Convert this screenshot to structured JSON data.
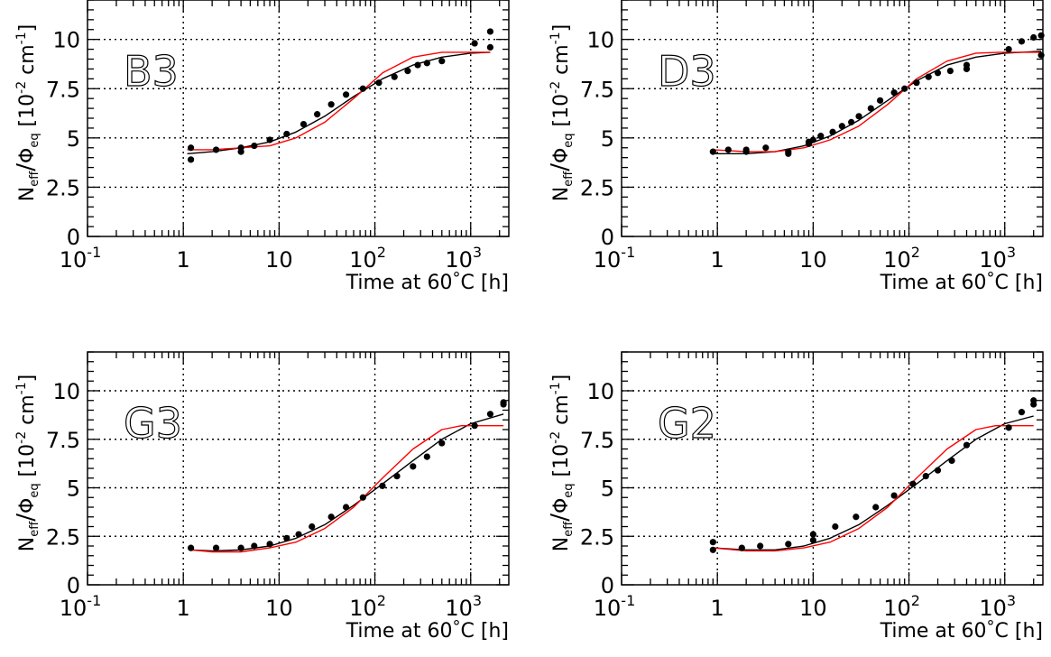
{
  "figure": {
    "xlabel_text": "Time at 60",
    "xlabel_degree": "°",
    "xlabel_unit": "C [h]",
    "ylabel": {
      "n": "N",
      "n_sub": "eff",
      "slash": "/",
      "phi": "Φ",
      "phi_sub": "eq",
      "unit_open": "[10",
      "unit_exp": "-2",
      "unit_cm": " cm",
      "unit_exp2": "-1",
      "unit_close": "]"
    },
    "xtick_labels": [
      {
        "base": "10",
        "exp": "-1"
      },
      {
        "base": "1",
        "exp": ""
      },
      {
        "base": "10",
        "exp": ""
      },
      {
        "base": "10",
        "exp": "2"
      },
      {
        "base": "10",
        "exp": "3"
      }
    ],
    "ytick_labels": [
      "0",
      "2.5",
      "5",
      "7.5",
      "10"
    ],
    "colors": {
      "data": "#000000",
      "fit_black": "#000000",
      "fit_red": "#ff0000",
      "grid": "#000000"
    }
  },
  "chart_data": [
    {
      "type": "scatter",
      "panel_label": "B3",
      "xscale": "log",
      "xlim": [
        0.1,
        2500
      ],
      "ylim": [
        0,
        12
      ],
      "grid": true,
      "series": [
        {
          "kind": "points",
          "x": [
            1.2,
            1.2,
            2.2,
            4,
            4,
            5.5,
            8,
            12,
            18,
            25,
            35,
            50,
            75,
            110,
            160,
            220,
            280,
            350,
            500,
            1100,
            1600,
            1600
          ],
          "y": [
            4.5,
            3.9,
            4.4,
            4.5,
            4.3,
            4.6,
            4.9,
            5.2,
            5.7,
            6.2,
            6.7,
            7.2,
            7.5,
            7.8,
            8.1,
            8.4,
            8.7,
            8.8,
            8.9,
            9.8,
            10.4,
            9.6
          ]
        },
        {
          "kind": "line",
          "color": "black",
          "x": [
            1.1,
            2,
            4,
            8,
            15,
            30,
            60,
            120,
            250,
            500,
            1000,
            1600
          ],
          "y": [
            4.2,
            4.3,
            4.5,
            4.8,
            5.3,
            6.1,
            7.1,
            8.0,
            8.7,
            9.1,
            9.3,
            9.35
          ]
        },
        {
          "kind": "line",
          "color": "red",
          "x": [
            1.1,
            2,
            4,
            8,
            15,
            30,
            60,
            120,
            250,
            500,
            800,
            1600
          ],
          "y": [
            4.4,
            4.4,
            4.5,
            4.6,
            5.0,
            5.8,
            7.0,
            8.3,
            9.1,
            9.35,
            9.35,
            9.35
          ]
        }
      ]
    },
    {
      "type": "scatter",
      "panel_label": "D3",
      "xscale": "log",
      "xlim": [
        0.1,
        2500
      ],
      "ylim": [
        0,
        12
      ],
      "grid": true,
      "series": [
        {
          "kind": "points",
          "x": [
            0.9,
            1.3,
            2,
            2,
            3.2,
            5.5,
            5.5,
            9,
            9,
            10,
            12,
            16,
            20,
            25,
            30,
            40,
            50,
            70,
            90,
            120,
            160,
            200,
            270,
            400,
            400,
            1100,
            1500,
            2000,
            2400,
            2400
          ],
          "y": [
            4.3,
            4.4,
            4.3,
            4.4,
            4.5,
            4.3,
            4.2,
            4.7,
            4.8,
            4.9,
            5.1,
            5.3,
            5.6,
            5.8,
            6.1,
            6.5,
            6.9,
            7.3,
            7.5,
            7.8,
            8.1,
            8.3,
            8.4,
            8.7,
            8.5,
            9.5,
            9.9,
            10.1,
            10.2,
            9.2
          ]
        },
        {
          "kind": "line",
          "color": "black",
          "x": [
            0.9,
            2,
            4,
            8,
            15,
            30,
            60,
            120,
            250,
            500,
            1000,
            2400
          ],
          "y": [
            4.2,
            4.2,
            4.3,
            4.6,
            5.1,
            5.9,
            6.9,
            7.9,
            8.7,
            9.1,
            9.3,
            9.4
          ]
        },
        {
          "kind": "line",
          "color": "red",
          "x": [
            0.9,
            2,
            4,
            8,
            15,
            30,
            60,
            120,
            250,
            500,
            900,
            2400
          ],
          "y": [
            4.4,
            4.3,
            4.3,
            4.5,
            4.9,
            5.6,
            6.7,
            8.0,
            8.9,
            9.3,
            9.35,
            9.35
          ]
        }
      ]
    },
    {
      "type": "scatter",
      "panel_label": "G3",
      "xscale": "log",
      "xlim": [
        0.1,
        2500
      ],
      "ylim": [
        0,
        12
      ],
      "grid": true,
      "series": [
        {
          "kind": "points",
          "x": [
            1.2,
            2.2,
            4,
            5.5,
            8,
            12,
            16,
            22,
            35,
            50,
            75,
            120,
            170,
            250,
            350,
            500,
            1100,
            1600,
            2200,
            2200
          ],
          "y": [
            1.9,
            1.9,
            1.9,
            2.0,
            2.1,
            2.4,
            2.6,
            3.0,
            3.5,
            4.0,
            4.5,
            5.1,
            5.6,
            6.1,
            6.6,
            7.3,
            8.2,
            8.8,
            9.3,
            9.4
          ]
        },
        {
          "kind": "line",
          "color": "black",
          "x": [
            1.2,
            2,
            4,
            8,
            15,
            30,
            60,
            120,
            250,
            500,
            1000,
            2200
          ],
          "y": [
            1.8,
            1.75,
            1.8,
            2.0,
            2.4,
            3.1,
            4.1,
            5.2,
            6.4,
            7.5,
            8.3,
            8.8
          ]
        },
        {
          "kind": "line",
          "color": "red",
          "x": [
            1.2,
            2,
            4,
            8,
            15,
            30,
            60,
            120,
            250,
            500,
            800,
            2200
          ],
          "y": [
            1.8,
            1.7,
            1.7,
            1.9,
            2.2,
            2.9,
            4.0,
            5.5,
            7.0,
            8.0,
            8.2,
            8.2
          ]
        }
      ]
    },
    {
      "type": "scatter",
      "panel_label": "G2",
      "xscale": "log",
      "xlim": [
        0.1,
        2500
      ],
      "ylim": [
        0,
        12
      ],
      "grid": true,
      "series": [
        {
          "kind": "points",
          "x": [
            0.9,
            0.9,
            1.8,
            2.8,
            5.5,
            10,
            10,
            17,
            28,
            45,
            70,
            110,
            150,
            200,
            280,
            400,
            1100,
            1500,
            2000,
            2000
          ],
          "y": [
            2.2,
            1.8,
            1.9,
            2.0,
            2.1,
            2.6,
            2.3,
            3.0,
            3.5,
            4.0,
            4.6,
            5.2,
            5.6,
            5.9,
            6.4,
            7.2,
            8.1,
            8.9,
            9.3,
            9.5
          ]
        },
        {
          "kind": "line",
          "color": "black",
          "x": [
            0.9,
            2,
            4,
            8,
            15,
            30,
            60,
            120,
            250,
            500,
            1000,
            2000
          ],
          "y": [
            1.9,
            1.8,
            1.8,
            2.0,
            2.4,
            3.1,
            4.1,
            5.2,
            6.4,
            7.5,
            8.3,
            8.7
          ]
        },
        {
          "kind": "line",
          "color": "red",
          "x": [
            0.9,
            2,
            4,
            8,
            15,
            30,
            60,
            120,
            250,
            500,
            800,
            2000
          ],
          "y": [
            1.9,
            1.75,
            1.75,
            1.9,
            2.2,
            2.9,
            4.0,
            5.5,
            7.0,
            8.0,
            8.2,
            8.2
          ]
        }
      ]
    }
  ]
}
